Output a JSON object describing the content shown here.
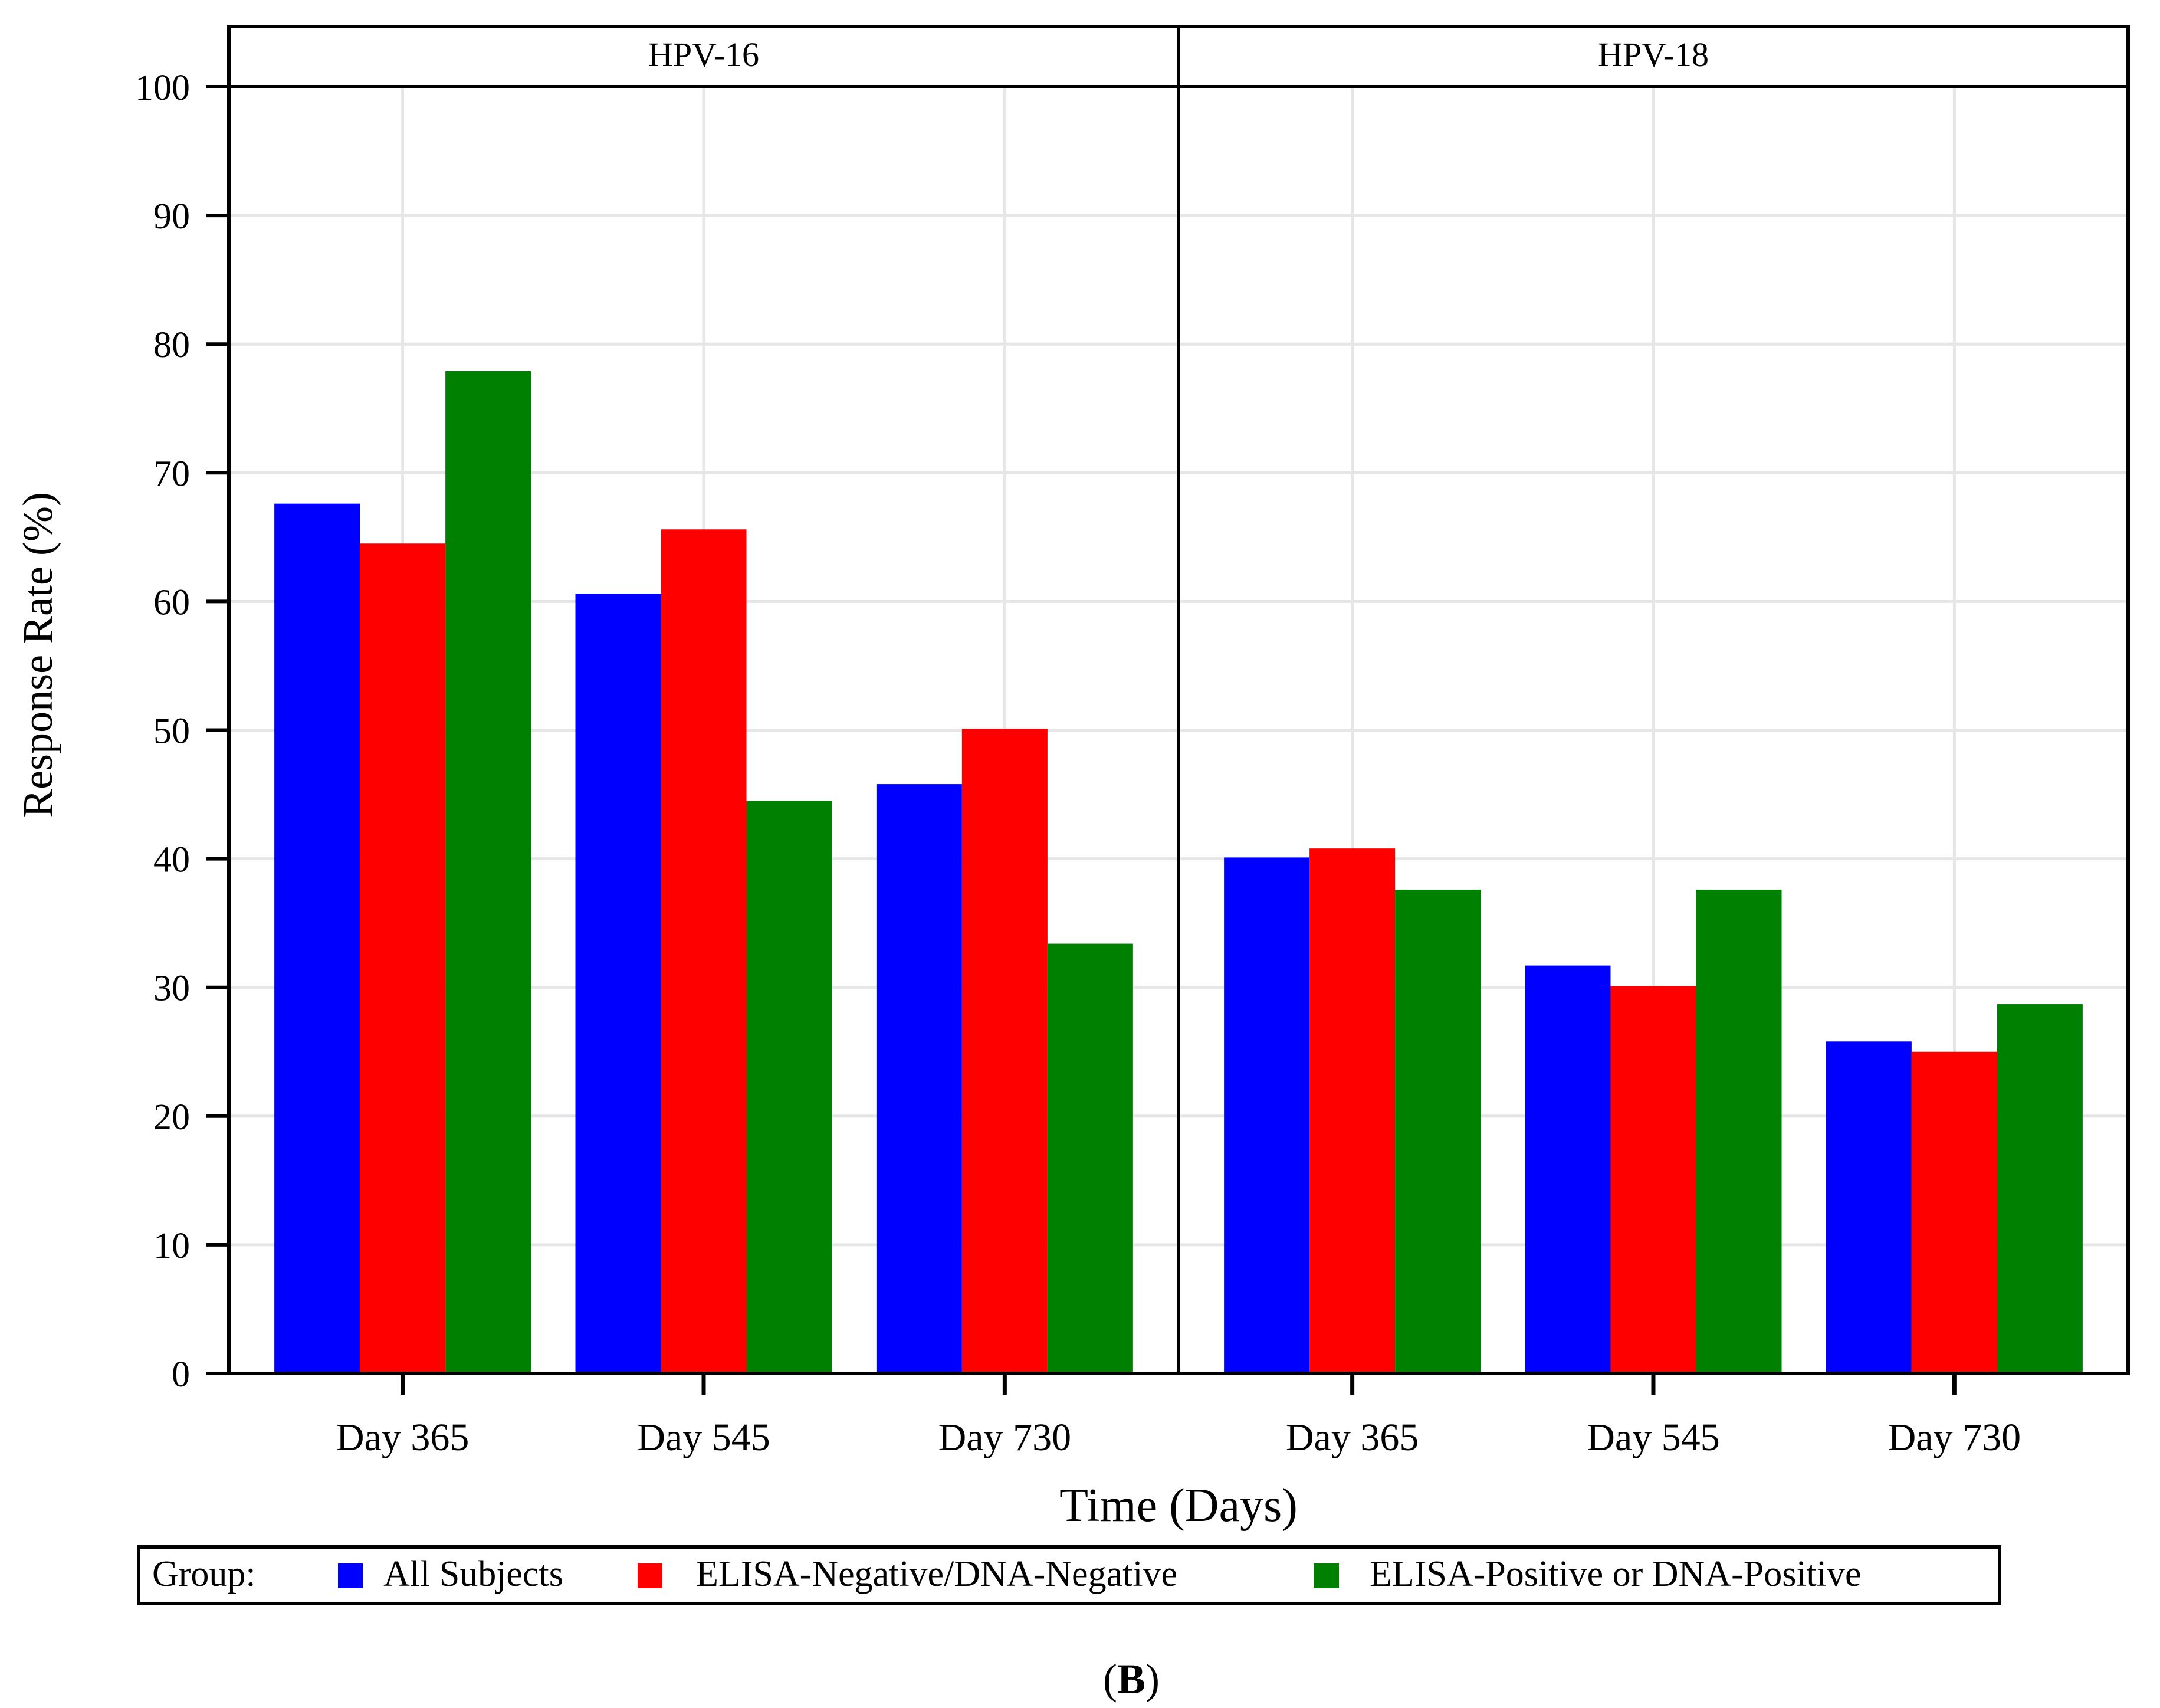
{
  "chart_data": {
    "type": "bar",
    "ylabel": "Response Rate (%)",
    "xlabel": "Time (Days)",
    "ylim": [
      0,
      100
    ],
    "yticks": [
      0,
      10,
      20,
      30,
      40,
      50,
      60,
      70,
      80,
      90,
      100
    ],
    "grid": true,
    "legend_placement": "bottom",
    "legend_title": "Group:",
    "categories": [
      "Day 365",
      "Day 545",
      "Day 730"
    ],
    "series_colors": [
      "#0000ff",
      "#ff0000",
      "#008000"
    ],
    "panels": [
      {
        "title": "HPV-16",
        "series": [
          {
            "name": "All Subjects",
            "values": [
              67.6,
              60.6,
              45.8
            ]
          },
          {
            "name": "ELISA-Negative/DNA-Negative",
            "values": [
              64.5,
              65.6,
              50.1
            ]
          },
          {
            "name": "ELISA-Positive or DNA-Positive",
            "values": [
              77.9,
              44.5,
              33.4
            ]
          }
        ]
      },
      {
        "title": "HPV-18",
        "series": [
          {
            "name": "All Subjects",
            "values": [
              40.1,
              31.7,
              25.8
            ]
          },
          {
            "name": "ELISA-Negative/DNA-Negative",
            "values": [
              40.8,
              30.1,
              25.0
            ]
          },
          {
            "name": "ELISA-Positive or DNA-Positive",
            "values": [
              37.6,
              37.6,
              28.7
            ]
          }
        ]
      }
    ]
  },
  "caption": {
    "open": "(",
    "letter": "B",
    "close": ")"
  }
}
